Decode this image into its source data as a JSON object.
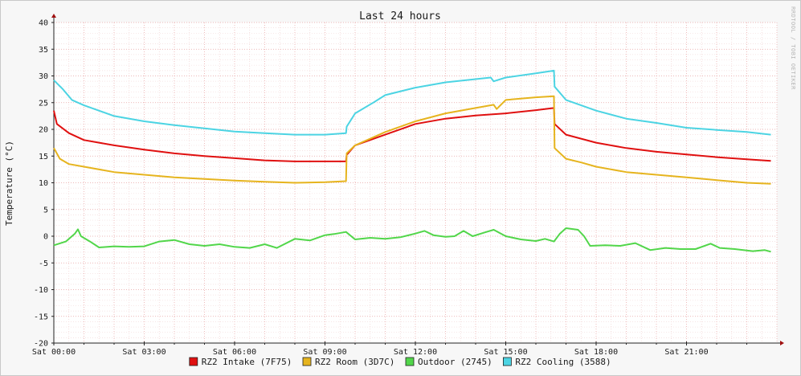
{
  "chart_data": {
    "type": "line",
    "title": "Last 24 hours",
    "ylabel": "Temperature (°C)",
    "watermark": "RRDTOOL / TOBI OETIKER",
    "ylim": [
      -20,
      40
    ],
    "yticks": [
      40,
      35,
      30,
      25,
      20,
      15,
      10,
      5,
      0,
      -5,
      -10,
      -15,
      -20
    ],
    "xlim": [
      0,
      24
    ],
    "xticks": [
      {
        "hour": 0,
        "label": "Sat 00:00"
      },
      {
        "hour": 3,
        "label": "Sat 03:00"
      },
      {
        "hour": 6,
        "label": "Sat 06:00"
      },
      {
        "hour": 9,
        "label": "Sat 09:00"
      },
      {
        "hour": 12,
        "label": "Sat 12:00"
      },
      {
        "hour": 15,
        "label": "Sat 15:00"
      },
      {
        "hour": 18,
        "label": "Sat 18:00"
      },
      {
        "hour": 21,
        "label": "Sat 21:00"
      }
    ],
    "grid": true,
    "legend_position": "bottom",
    "series": [
      {
        "name": "RZ2 Intake (7F75)",
        "color": "#e01010",
        "points": [
          [
            0,
            23.5
          ],
          [
            0.1,
            21
          ],
          [
            0.5,
            19.3
          ],
          [
            1,
            18
          ],
          [
            2,
            17
          ],
          [
            3,
            16.2
          ],
          [
            4,
            15.5
          ],
          [
            5,
            15
          ],
          [
            6,
            14.6
          ],
          [
            7,
            14.2
          ],
          [
            8,
            14
          ],
          [
            9,
            14
          ],
          [
            9.7,
            14
          ],
          [
            9.72,
            15.2
          ],
          [
            10,
            17
          ],
          [
            11,
            19
          ],
          [
            12,
            21
          ],
          [
            13,
            22
          ],
          [
            14,
            22.6
          ],
          [
            15,
            23
          ],
          [
            16,
            23.6
          ],
          [
            16.6,
            24
          ],
          [
            16.62,
            21
          ],
          [
            17,
            19
          ],
          [
            18,
            17.5
          ],
          [
            19,
            16.5
          ],
          [
            20,
            15.8
          ],
          [
            21,
            15.3
          ],
          [
            22,
            14.8
          ],
          [
            23,
            14.4
          ],
          [
            23.8,
            14.1
          ]
        ]
      },
      {
        "name": "RZ2 Room (3D7C)",
        "color": "#e6b41e",
        "points": [
          [
            0,
            16.5
          ],
          [
            0.2,
            14.5
          ],
          [
            0.5,
            13.5
          ],
          [
            1,
            13
          ],
          [
            2,
            12
          ],
          [
            3,
            11.5
          ],
          [
            4,
            11
          ],
          [
            5,
            10.7
          ],
          [
            6,
            10.4
          ],
          [
            7,
            10.2
          ],
          [
            8,
            10
          ],
          [
            9,
            10.1
          ],
          [
            9.7,
            10.3
          ],
          [
            9.72,
            15.5
          ],
          [
            10,
            17
          ],
          [
            11,
            19.5
          ],
          [
            12,
            21.5
          ],
          [
            13,
            23
          ],
          [
            14,
            24
          ],
          [
            14.6,
            24.6
          ],
          [
            14.7,
            23.8
          ],
          [
            15,
            25.5
          ],
          [
            16,
            26
          ],
          [
            16.6,
            26.2
          ],
          [
            16.62,
            16.5
          ],
          [
            17,
            14.5
          ],
          [
            17.5,
            13.8
          ],
          [
            18,
            13
          ],
          [
            19,
            12
          ],
          [
            20,
            11.5
          ],
          [
            21,
            11
          ],
          [
            22,
            10.5
          ],
          [
            23,
            10
          ],
          [
            23.8,
            9.8
          ]
        ]
      },
      {
        "name": "Outdoor (2745)",
        "color": "#52d64a",
        "points": [
          [
            0,
            -1.7
          ],
          [
            0.4,
            -1
          ],
          [
            0.7,
            0.5
          ],
          [
            0.8,
            1.3
          ],
          [
            0.9,
            0
          ],
          [
            1.2,
            -1
          ],
          [
            1.5,
            -2.1
          ],
          [
            2,
            -1.9
          ],
          [
            2.5,
            -2
          ],
          [
            3,
            -1.9
          ],
          [
            3.5,
            -1
          ],
          [
            4,
            -0.7
          ],
          [
            4.5,
            -1.5
          ],
          [
            5,
            -1.8
          ],
          [
            5.5,
            -1.5
          ],
          [
            6,
            -2
          ],
          [
            6.5,
            -2.2
          ],
          [
            7,
            -1.5
          ],
          [
            7.4,
            -2.2
          ],
          [
            8,
            -0.5
          ],
          [
            8.5,
            -0.8
          ],
          [
            9,
            0.2
          ],
          [
            9.3,
            0.4
          ],
          [
            9.7,
            0.8
          ],
          [
            10,
            -0.6
          ],
          [
            10.5,
            -0.3
          ],
          [
            11,
            -0.5
          ],
          [
            11.5,
            -0.2
          ],
          [
            12,
            0.5
          ],
          [
            12.3,
            1
          ],
          [
            12.6,
            0.2
          ],
          [
            13,
            -0.1
          ],
          [
            13.3,
            0
          ],
          [
            13.6,
            1
          ],
          [
            13.9,
            0
          ],
          [
            14.3,
            0.7
          ],
          [
            14.6,
            1.2
          ],
          [
            15,
            0
          ],
          [
            15.5,
            -0.6
          ],
          [
            16,
            -0.9
          ],
          [
            16.3,
            -0.5
          ],
          [
            16.6,
            -1
          ],
          [
            16.8,
            0.5
          ],
          [
            17,
            1.5
          ],
          [
            17.4,
            1.2
          ],
          [
            17.6,
            0
          ],
          [
            17.8,
            -1.8
          ],
          [
            18.3,
            -1.7
          ],
          [
            18.8,
            -1.8
          ],
          [
            19.3,
            -1.3
          ],
          [
            19.8,
            -2.6
          ],
          [
            20.3,
            -2.2
          ],
          [
            20.8,
            -2.4
          ],
          [
            21.3,
            -2.4
          ],
          [
            21.8,
            -1.4
          ],
          [
            22.1,
            -2.2
          ],
          [
            22.6,
            -2.4
          ],
          [
            23.2,
            -2.8
          ],
          [
            23.6,
            -2.6
          ],
          [
            23.8,
            -2.9
          ]
        ]
      },
      {
        "name": "RZ2 Cooling (3588)",
        "color": "#4cd4e3",
        "points": [
          [
            0,
            29.2
          ],
          [
            0.3,
            27.5
          ],
          [
            0.6,
            25.5
          ],
          [
            1,
            24.5
          ],
          [
            2,
            22.5
          ],
          [
            3,
            21.5
          ],
          [
            4,
            20.8
          ],
          [
            5,
            20.2
          ],
          [
            6,
            19.6
          ],
          [
            7,
            19.3
          ],
          [
            8,
            19
          ],
          [
            9,
            19
          ],
          [
            9.7,
            19.3
          ],
          [
            9.72,
            20.5
          ],
          [
            10,
            23
          ],
          [
            10.6,
            25
          ],
          [
            11,
            26.4
          ],
          [
            12,
            27.8
          ],
          [
            13,
            28.8
          ],
          [
            14,
            29.4
          ],
          [
            14.5,
            29.7
          ],
          [
            14.6,
            29
          ],
          [
            15,
            29.7
          ],
          [
            16,
            30.5
          ],
          [
            16.6,
            31
          ],
          [
            16.62,
            28
          ],
          [
            17,
            25.5
          ],
          [
            18,
            23.5
          ],
          [
            19,
            22
          ],
          [
            20,
            21.2
          ],
          [
            21,
            20.3
          ],
          [
            22,
            19.9
          ],
          [
            23,
            19.5
          ],
          [
            23.8,
            19
          ]
        ]
      }
    ]
  }
}
